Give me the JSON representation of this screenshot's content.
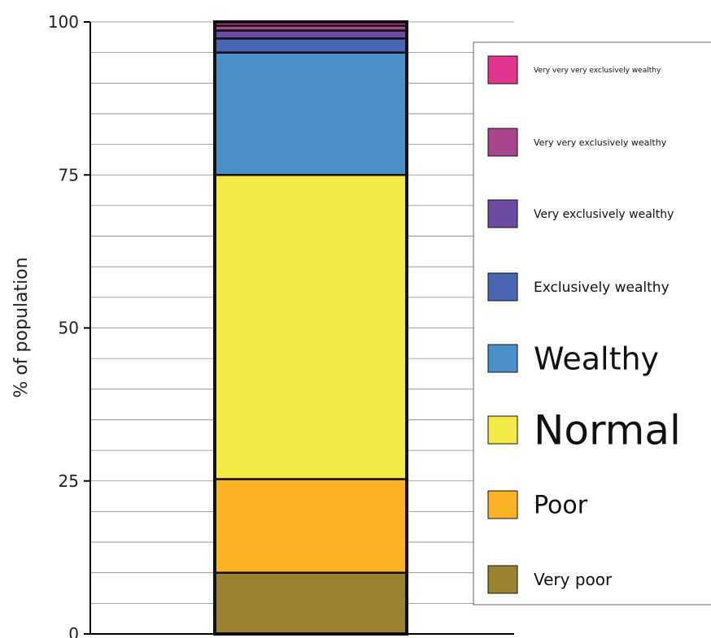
{
  "chart_data": {
    "type": "bar",
    "stacked": true,
    "categories": [
      ""
    ],
    "ylabel": "% of population",
    "xlabel": "",
    "ylim": [
      0,
      100
    ],
    "yticks": [
      0,
      25,
      50,
      75,
      100
    ],
    "grid": "horizontal minor lines every 5",
    "legend_placement": "right",
    "series": [
      {
        "name": "Very poor",
        "values": [
          10
        ],
        "color": "#9a8230",
        "legend_font_size": 20
      },
      {
        "name": "Poor",
        "values": [
          15.3
        ],
        "color": "#fbb224",
        "legend_font_size": 30
      },
      {
        "name": "Normal",
        "values": [
          49.7
        ],
        "color": "#f4ea47",
        "legend_font_size": 50
      },
      {
        "name": "Wealthy",
        "values": [
          20
        ],
        "color": "#4a8fca",
        "legend_font_size": 38
      },
      {
        "name": "Exclusively wealthy",
        "values": [
          2.3
        ],
        "color": "#4a65b2",
        "legend_font_size": 17
      },
      {
        "name": "Very exclusively wealthy",
        "values": [
          1.3
        ],
        "color": "#6c4ba2",
        "legend_font_size": 14
      },
      {
        "name": "Very very exclusively wealthy",
        "values": [
          0.8
        ],
        "color": "#a9448f",
        "legend_font_size": 11
      },
      {
        "name": "Very very very exclusively wealthy",
        "values": [
          0.6
        ],
        "color": "#e1358f",
        "legend_font_size": 9
      }
    ]
  }
}
